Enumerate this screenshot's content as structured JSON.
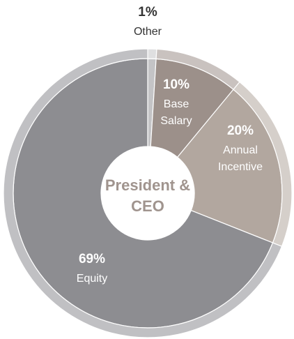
{
  "chart_data": {
    "type": "donut",
    "center_label": [
      "President &",
      "CEO"
    ],
    "categories": [
      "Other",
      "Base Salary",
      "Annual Incentive",
      "Equity"
    ],
    "values": [
      1,
      10,
      20,
      69
    ],
    "value_labels": [
      "1%",
      "10%",
      "20%",
      "69%"
    ],
    "colors": [
      "#c4c4c6",
      "#9c908a",
      "#b2a79f",
      "#8d8d91"
    ]
  }
}
